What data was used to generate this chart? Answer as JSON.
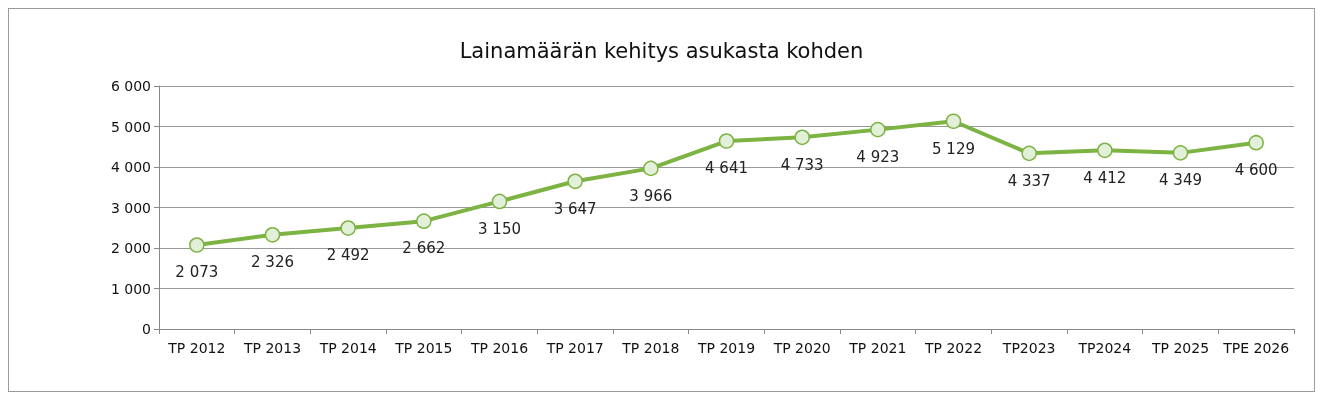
{
  "chart_data": {
    "type": "line",
    "title": "Lainamäärän kehitys asukasta kohden",
    "categories": [
      "TP 2012",
      "TP 2013",
      "TP 2014",
      "TP 2015",
      "TP 2016",
      "TP 2017",
      "TP 2018",
      "TP 2019",
      "TP 2020",
      "TP 2021",
      "TP 2022",
      "TP2023",
      "TP2024",
      "TP 2025",
      "TPE 2026"
    ],
    "values": [
      2073,
      2326,
      2492,
      2662,
      3150,
      3647,
      3966,
      4641,
      4733,
      4923,
      5129,
      4337,
      4412,
      4349,
      4600
    ],
    "value_labels": [
      "2 073",
      "2 326",
      "2 492",
      "2 662",
      "3 150",
      "3 647",
      "3 966",
      "4 641",
      "4 733",
      "4 923",
      "5 129",
      "4 337",
      "4 412",
      "4 349",
      "4 600"
    ],
    "color": "#7cb342",
    "ylim": [
      0,
      6000
    ],
    "yticks": [
      0,
      {
        "value": 1000,
        "label": "1 000"
      },
      {
        "value": 2000,
        "label": "2 000"
      },
      {
        "value": 3000,
        "label": "3 000"
      },
      {
        "value": 4000,
        "label": "4 000"
      },
      {
        "value": 5000,
        "label": "5 000"
      },
      {
        "value": 6000,
        "label": "6 000"
      }
    ],
    "grid": "y",
    "marker": "circle",
    "line_style": "solid"
  }
}
